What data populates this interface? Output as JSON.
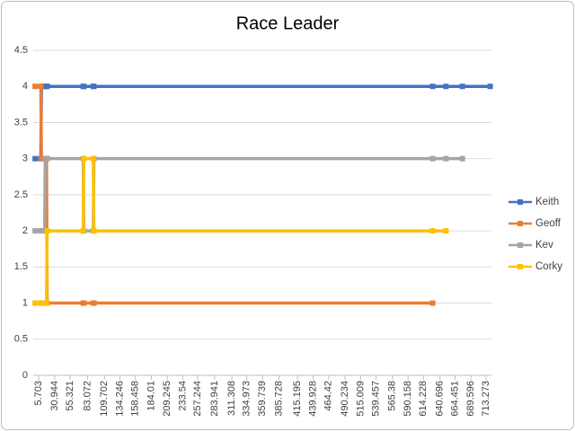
{
  "chart_data": {
    "type": "line",
    "title": "Race Leader",
    "x": [
      0,
      9,
      10,
      15,
      16,
      18,
      19,
      76,
      77,
      92,
      93,
      629,
      650,
      676,
      720
    ],
    "series": [
      {
        "name": "Keith",
        "color": "#4472c4",
        "values": [
          3,
          3,
          4,
          4,
          4,
          4,
          4,
          4,
          4,
          4,
          4,
          4,
          4,
          4,
          4
        ]
      },
      {
        "name": "Geoff",
        "color": "#ed7d31",
        "values": [
          4,
          4,
          3,
          3,
          3,
          3,
          1,
          1,
          1,
          1,
          1,
          1,
          null,
          null,
          null
        ]
      },
      {
        "name": "Kev",
        "color": "#a5a5a5",
        "values": [
          2,
          2,
          2,
          2,
          3,
          3,
          3,
          3,
          2,
          2,
          3,
          3,
          3,
          3,
          null
        ]
      },
      {
        "name": "Corky",
        "color": "#ffc000",
        "values": [
          1,
          1,
          1,
          1,
          1,
          1,
          2,
          2,
          3,
          3,
          2,
          2,
          2,
          null,
          null
        ]
      }
    ],
    "xlim": [
      -3,
      722
    ],
    "xticks": [
      5.703,
      30.944,
      55.321,
      83.072,
      109.702,
      134.246,
      158.458,
      184.01,
      209.245,
      233.54,
      257.244,
      283.941,
      311.308,
      334.973,
      359.739,
      385.728,
      415.195,
      439.928,
      464.42,
      490.234,
      515.009,
      539.457,
      565.38,
      590.158,
      614.228,
      640.696,
      664.451,
      689.596,
      713.273
    ],
    "ylim": [
      0,
      4.5
    ],
    "yticks": [
      0,
      0.5,
      1,
      1.5,
      2,
      2.5,
      3,
      3.5,
      4,
      4.5
    ],
    "grid": true,
    "legend": "right"
  }
}
